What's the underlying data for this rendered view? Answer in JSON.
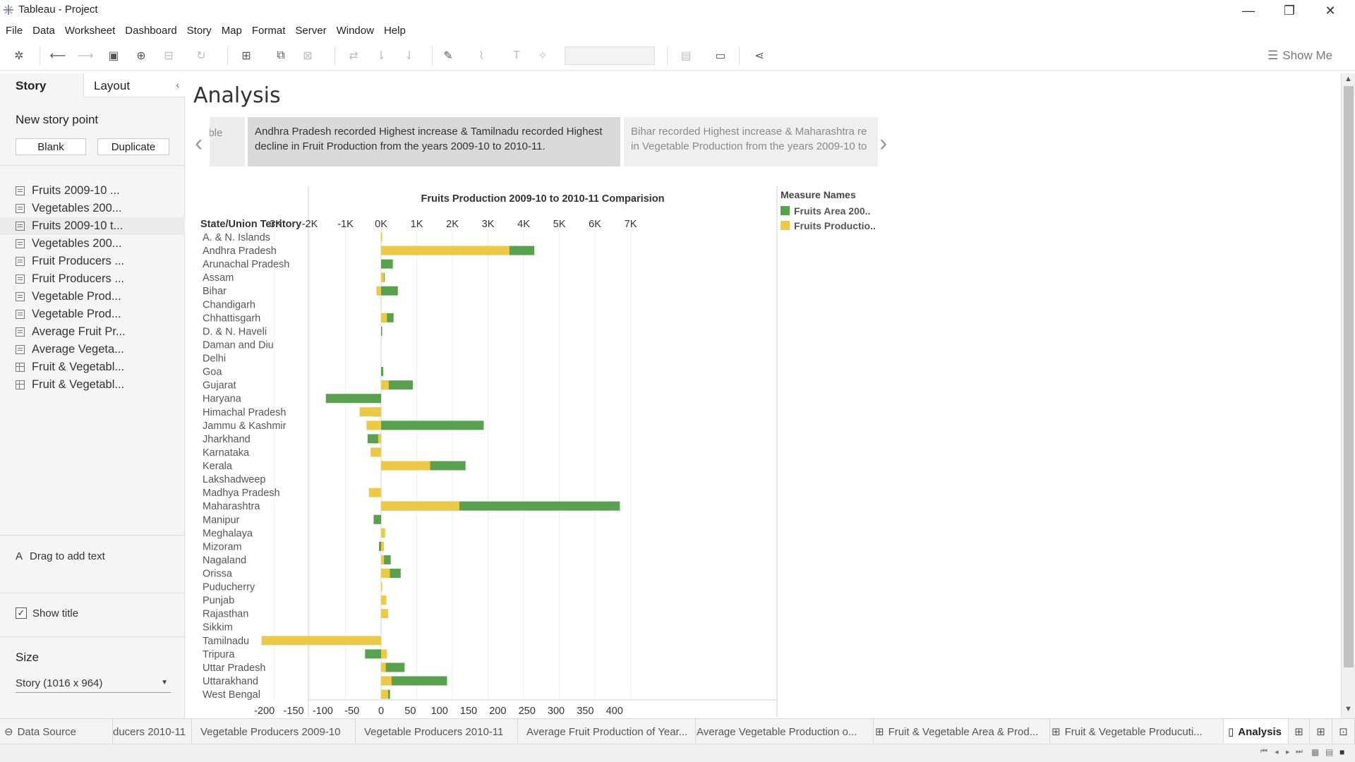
{
  "window": {
    "title": "Tableau - Project",
    "minimize": "—",
    "restore": "❐",
    "close": "✕"
  },
  "menu": [
    "File",
    "Data",
    "Worksheet",
    "Dashboard",
    "Story",
    "Map",
    "Format",
    "Server",
    "Window",
    "Help"
  ],
  "toolbar": {
    "show_me": "Show Me"
  },
  "left_pane": {
    "tab_story": "Story",
    "tab_layout": "Layout",
    "new_story_point": "New story point",
    "blank_button": "Blank",
    "duplicate_button": "Duplicate",
    "items": [
      "Fruits 2009-10 ...",
      "Vegetables 200...",
      "Fruits 2009-10 t...",
      "Vegetables 200...",
      "Fruit Producers ...",
      "Fruit Producers ...",
      "Vegetable Prod...",
      "Vegetable Prod...",
      "Average Fruit Pr...",
      "Average Vegeta...",
      "Fruit & Vegetabl...",
      "Fruit & Vegetabl..."
    ],
    "drag_to_add_text": "Drag to add text",
    "show_title": "Show title",
    "size_heading": "Size",
    "size_value": "Story (1016 x 964)"
  },
  "story": {
    "title": "Analysis",
    "caption_prev": "able",
    "caption_active": "Andhra Pradesh recorded Highest increase & Tamilnadu recorded Highest decline in  Fruit Production from the years 2009-10 to 2010-11.",
    "caption_next_line1": "Bihar recorded Highest increase & Maharashtra re",
    "caption_next_line2": "in Vegetable Production from the years 2009-10 to"
  },
  "legend": {
    "title": "Measure Names",
    "items": [
      {
        "label": "Fruits Area 200..",
        "color": "#59a14f"
      },
      {
        "label": "Fruits Productio..",
        "color": "#edc948"
      }
    ]
  },
  "chart_data": {
    "type": "bar",
    "title": "Fruits Production 2009-10 to 2010-11 Comparision",
    "row_header": "State/Union Territory",
    "top_axis": {
      "ticks": [
        "-3K",
        "-2K",
        "-1K",
        "0K",
        "1K",
        "2K",
        "3K",
        "4K",
        "5K",
        "6K",
        "7K"
      ],
      "range": [
        -3200,
        7000
      ]
    },
    "bottom_axis": {
      "ticks": [
        "-200",
        "-150",
        "-100",
        "-50",
        "0",
        "50",
        "100",
        "150",
        "200",
        "250",
        "300",
        "350",
        "400"
      ],
      "range": [
        -205,
        435
      ]
    },
    "categories": [
      "A. & N. Islands",
      "Andhra Pradesh",
      "Arunachal Pradesh",
      "Assam",
      "Bihar",
      "Chandigarh",
      "Chhattisgarh",
      "D. & N. Haveli",
      "Daman and Diu",
      "Delhi",
      "Goa",
      "Gujarat",
      "Haryana",
      "Himachal Pradesh",
      "Jammu & Kashmir",
      "Jharkhand",
      "Karnataka",
      "Kerala",
      "Lakshadweep",
      "Madhya Pradesh",
      "Maharashtra",
      "Manipur",
      "Meghalaya",
      "Mizoram",
      "Nagaland",
      "Orissa",
      "Puducherry",
      "Punjab",
      "Rajasthan",
      "Sikkim",
      "Tamilnadu",
      "Tripura",
      "Uttar Pradesh",
      "Uttarakhand",
      "West Bengal"
    ],
    "series": [
      {
        "name": "Fruits Area 200..",
        "axis": "top",
        "values": [
          0,
          4300,
          330,
          100,
          470,
          0,
          350,
          30,
          0,
          0,
          60,
          890,
          -1550,
          -200,
          2880,
          -380,
          0,
          2370,
          0,
          0,
          6700,
          -210,
          90,
          -60,
          270,
          550,
          0,
          0,
          0,
          0,
          0,
          -450,
          660,
          1850,
          250
        ]
      },
      {
        "name": "Fruits Productio..",
        "axis": "bottom",
        "values": [
          1,
          220,
          0,
          5,
          -8,
          0,
          10,
          0,
          0,
          0,
          0,
          13,
          0,
          -37,
          -25,
          -5,
          -18,
          84,
          0,
          -21,
          134,
          0,
          7,
          5,
          5,
          15,
          1,
          9,
          12,
          0,
          -205,
          10,
          8,
          18,
          12
        ]
      }
    ]
  },
  "bottom_tabs": {
    "data_source": "Data Source",
    "tabs": [
      "ducers 2010-11",
      "Vegetable Producers 2009-10",
      "Vegetable Producers 2010-11",
      "Average Fruit Production of Year...",
      "Average Vegetable Production o...",
      "Fruit & Vegetable Area & Prod...",
      "Fruit & Vegetable Producuti..."
    ],
    "active": "Analysis"
  }
}
